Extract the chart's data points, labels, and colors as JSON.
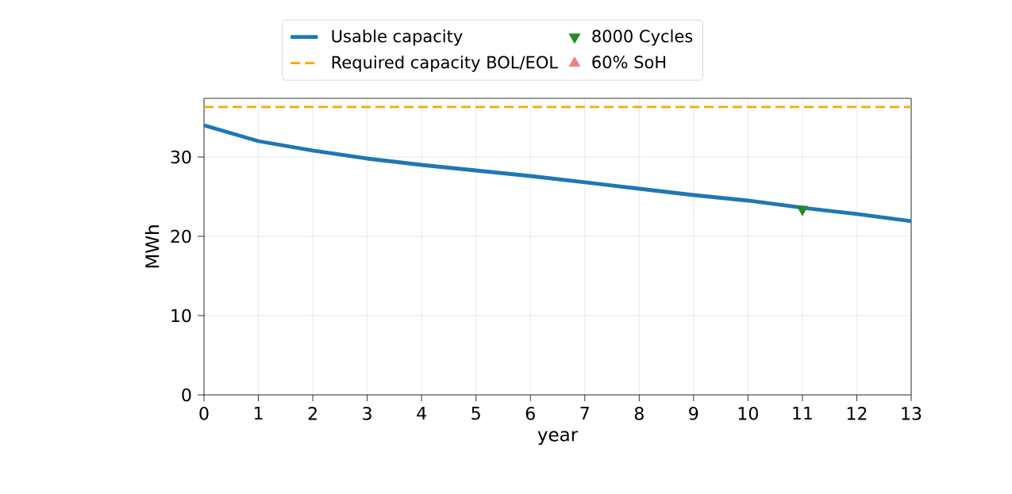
{
  "chart_data": {
    "type": "line",
    "xlabel": "year",
    "ylabel": "MWh",
    "x": [
      0,
      1,
      2,
      3,
      4,
      5,
      6,
      7,
      8,
      9,
      10,
      11,
      12,
      13
    ],
    "series": [
      {
        "name": "Usable capacity",
        "color": "#1f77b4",
        "values": [
          34.0,
          32.0,
          30.8,
          29.8,
          29.0,
          28.3,
          27.6,
          26.8,
          26.0,
          25.2,
          24.5,
          23.6,
          22.8,
          21.9
        ]
      },
      {
        "name": "8000 Cycles",
        "type": "scatter",
        "marker": "triangle-down",
        "color": "#228b22",
        "x": [
          11
        ],
        "values": [
          23.4
        ]
      },
      {
        "name": "60% SoH",
        "type": "scatter",
        "marker": "triangle",
        "color": "#f08080",
        "values": [
          null,
          null,
          null,
          null,
          null,
          null,
          null,
          null,
          null,
          null,
          null,
          null,
          null,
          null
        ]
      }
    ],
    "ref_lines": [
      {
        "axis": "y",
        "value": 36.3,
        "label": "Required capacity BOL/EOL",
        "color": "#ffa500",
        "line_style": "dashed"
      }
    ],
    "xlim": [
      0,
      13
    ],
    "ylim": [
      0,
      37.4
    ],
    "xticks": [
      0,
      1,
      2,
      3,
      4,
      5,
      6,
      7,
      8,
      9,
      10,
      11,
      12,
      13
    ],
    "yticks": [
      0,
      10,
      20,
      30
    ],
    "grid": true,
    "legend": "top"
  }
}
